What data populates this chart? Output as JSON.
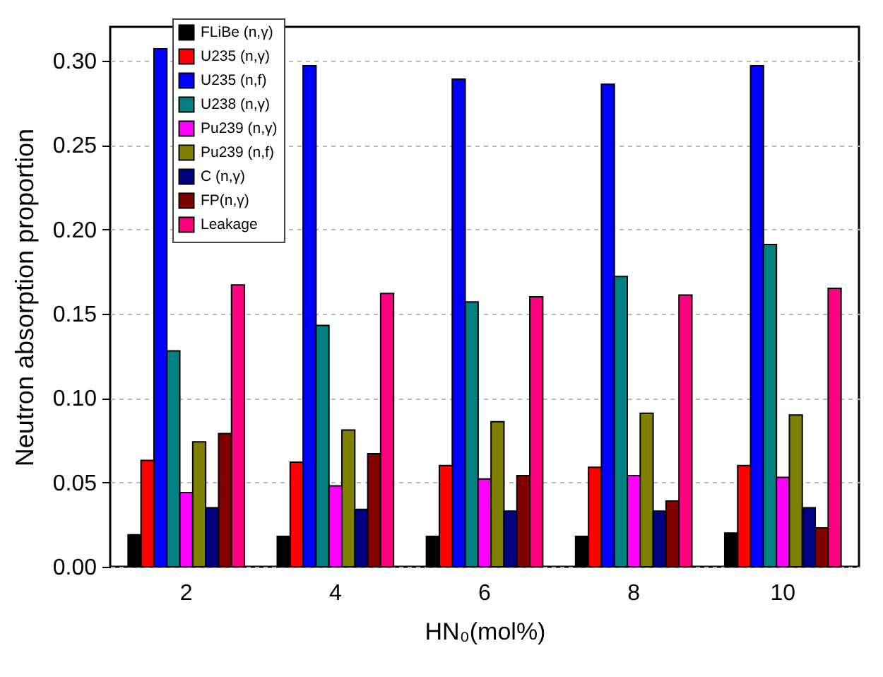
{
  "chart_data": {
    "type": "bar",
    "xlabel": "HN₀(mol%)",
    "ylabel": "Neutron absorption proportion",
    "categories": [
      "2",
      "4",
      "6",
      "8",
      "10"
    ],
    "series": [
      {
        "name": "FLiBe (n,γ)",
        "color": "#000000",
        "values": [
          0.019,
          0.018,
          0.018,
          0.018,
          0.02
        ]
      },
      {
        "name": "U235 (n,γ)",
        "color": "#ff0000",
        "values": [
          0.063,
          0.062,
          0.06,
          0.059,
          0.06
        ]
      },
      {
        "name": "U235 (n,f)",
        "color": "#0000ff",
        "values": [
          0.307,
          0.297,
          0.289,
          0.286,
          0.297
        ]
      },
      {
        "name": "U238 (n,γ)",
        "color": "#008080",
        "values": [
          0.128,
          0.143,
          0.157,
          0.172,
          0.191
        ]
      },
      {
        "name": "Pu239 (n,γ)",
        "color": "#ff00ff",
        "values": [
          0.044,
          0.048,
          0.052,
          0.054,
          0.053
        ]
      },
      {
        "name": "Pu239 (n,f)",
        "color": "#808000",
        "values": [
          0.074,
          0.081,
          0.086,
          0.091,
          0.09
        ]
      },
      {
        "name": "C (n,γ)",
        "color": "#000080",
        "values": [
          0.035,
          0.034,
          0.033,
          0.033,
          0.035
        ]
      },
      {
        "name": "FP(n,γ)",
        "color": "#800000",
        "values": [
          0.079,
          0.067,
          0.054,
          0.039,
          0.023
        ]
      },
      {
        "name": "Leakage",
        "color": "#ff0080",
        "values": [
          0.167,
          0.162,
          0.16,
          0.161,
          0.165
        ]
      }
    ],
    "ylim": [
      0,
      0.32
    ],
    "yticks": [
      {
        "value": 0,
        "label": "0.00"
      },
      {
        "value": 0.05,
        "label": "0.05"
      },
      {
        "value": 0.1,
        "label": "0.10"
      },
      {
        "value": 0.15,
        "label": "0.15"
      },
      {
        "value": 0.2,
        "label": "0.20"
      },
      {
        "value": 0.25,
        "label": "0.25"
      },
      {
        "value": 0.3,
        "label": "0.30"
      }
    ],
    "grid": "y",
    "legend": "top left"
  }
}
